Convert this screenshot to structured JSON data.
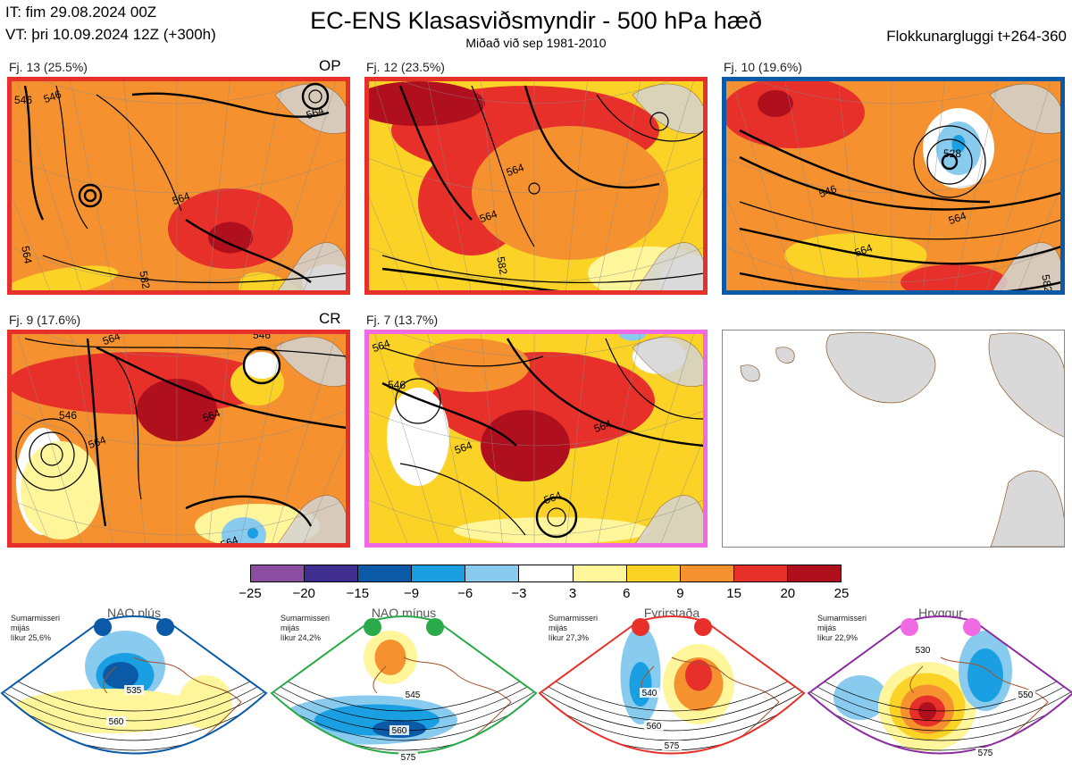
{
  "header": {
    "it": "IT: fim 29.08.2024 00Z",
    "vt": "VT: þri 10.09.2024 12Z  (+300h)",
    "title": "EC-ENS Klasasviðsmyndir - 500 hPa hæð",
    "subtitle": "Miðað við sep 1981-2010",
    "window": "Flokkunargluggi t+264-360"
  },
  "panels": [
    {
      "label": "Fj. 13 (25.5%)",
      "tag": "OP",
      "border": "#e8302a",
      "contours": [
        "546",
        "546",
        "564",
        "564",
        "564",
        "582"
      ]
    },
    {
      "label": "Fj. 12 (23.5%)",
      "tag": "",
      "border": "#e8302a",
      "contours": [
        "564",
        "564",
        "582"
      ]
    },
    {
      "label": "Fj. 10 (19.6%)",
      "tag": "",
      "border": "#0b5aa8",
      "contours": [
        "528",
        "546",
        "564",
        "564",
        "582",
        "582"
      ]
    },
    {
      "label": "Fj. 9 (17.6%)",
      "tag": "CR",
      "border": "#e8302a",
      "contours": [
        "564",
        "546",
        "546",
        "564",
        "564",
        "564"
      ]
    },
    {
      "label": "Fj. 7 (13.7%)",
      "tag": "",
      "border": "#f06ae4",
      "contours": [
        "564",
        "546",
        "564",
        "564",
        "564"
      ]
    }
  ],
  "legend": {
    "colors": [
      "#8b4d9f",
      "#3f2e8f",
      "#0b5aa8",
      "#1aa0e2",
      "#88cbef",
      "#ffffff",
      "#fff59a",
      "#fbd327",
      "#f5922f",
      "#e8302a",
      "#b0101e"
    ],
    "ticks": [
      "−25",
      "−20",
      "−15",
      "−9",
      "−6",
      "−3",
      "3",
      "6",
      "9",
      "15",
      "20",
      "25"
    ]
  },
  "regimes": [
    {
      "name": "NAO plús",
      "info": [
        "Sumarmisseri",
        "mijás",
        "líkur 25,6%"
      ],
      "color": "#0b5aa8",
      "dot": "#0b5aa8",
      "contours": [
        "535",
        "560"
      ]
    },
    {
      "name": "NAO mínus",
      "info": [
        "Sumarmisseri",
        "mijás",
        "líkur 24,2%"
      ],
      "color": "#2aaa4a",
      "dot": "#2aaa4a",
      "contours": [
        "545",
        "560",
        "575"
      ]
    },
    {
      "name": "Fyrirstaða",
      "info": [
        "Sumarmisseri",
        "mijás",
        "líkur 27,3%"
      ],
      "color": "#e8302a",
      "dot": "#e8302a",
      "contours": [
        "540",
        "560",
        "575"
      ]
    },
    {
      "name": "Hryggur",
      "info": [
        "Sumarmisseri",
        "mijás",
        "líkur 22,9%"
      ],
      "color": "#8b2d9f",
      "dot": "#f06ae4",
      "contours": [
        "530",
        "550",
        "575"
      ]
    }
  ]
}
